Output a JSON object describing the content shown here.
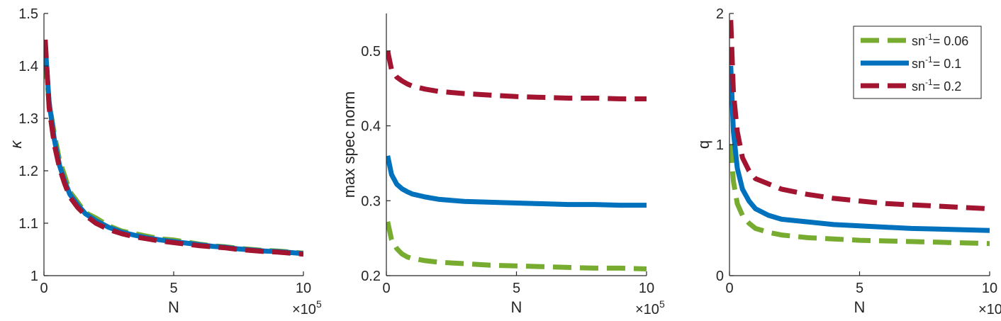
{
  "colors": {
    "green": "#77AC30",
    "blue": "#0072BD",
    "red": "#A2142F",
    "axis": "#262626"
  },
  "legend": {
    "placement": "top-right of third panel",
    "items": [
      {
        "series_index": 0,
        "prefix": "sn",
        "sup": "-1",
        "suffix": "= 0.06"
      },
      {
        "series_index": 1,
        "prefix": "sn",
        "sup": "-1",
        "suffix": "= 0.1"
      },
      {
        "series_index": 2,
        "prefix": "sn",
        "sup": "-1",
        "suffix": "= 0.2"
      }
    ]
  },
  "chart_data": [
    {
      "type": "line",
      "xlabel": "N",
      "x_multiplier": {
        "base": "×10",
        "exp": "5"
      },
      "ylabel": "κ",
      "xlim": [
        0,
        10
      ],
      "ylim": [
        1.0,
        1.5
      ],
      "xticks": [
        0,
        5,
        10
      ],
      "yticks": [
        1,
        1.1,
        1.2,
        1.3,
        1.4,
        1.5
      ],
      "ytick_labels": [
        "1",
        "1.1",
        "1.2",
        "1.3",
        "1.4",
        "1.5"
      ],
      "grid": false,
      "series": [
        {
          "style": "dashed",
          "color": "#77AC30",
          "x": [
            0.05,
            0.2,
            0.4,
            0.6,
            0.8,
            1.0,
            1.3,
            1.6,
            2.0,
            2.5,
            3.0,
            3.5,
            4.0,
            4.5,
            5.0,
            5.5,
            6.0,
            6.5,
            7.0,
            7.5,
            8.0,
            8.5,
            9.0,
            9.5,
            10.0
          ],
          "y": [
            1.41,
            1.33,
            1.27,
            1.22,
            1.19,
            1.16,
            1.14,
            1.12,
            1.11,
            1.095,
            1.085,
            1.08,
            1.075,
            1.07,
            1.068,
            1.064,
            1.06,
            1.057,
            1.055,
            1.052,
            1.05,
            1.048,
            1.047,
            1.045,
            1.043
          ]
        },
        {
          "style": "solid",
          "color": "#0072BD",
          "x": [
            0.05,
            0.2,
            0.4,
            0.6,
            0.8,
            1.0,
            1.3,
            1.6,
            2.0,
            2.5,
            3.0,
            3.5,
            4.0,
            4.5,
            5.0,
            5.5,
            6.0,
            6.5,
            7.0,
            7.5,
            8.0,
            8.5,
            9.0,
            9.5,
            10.0
          ],
          "y": [
            1.44,
            1.33,
            1.26,
            1.21,
            1.18,
            1.155,
            1.135,
            1.118,
            1.105,
            1.092,
            1.083,
            1.077,
            1.072,
            1.068,
            1.065,
            1.062,
            1.059,
            1.056,
            1.054,
            1.051,
            1.049,
            1.047,
            1.046,
            1.044,
            1.042
          ]
        },
        {
          "style": "dashed",
          "color": "#A2142F",
          "x": [
            0.05,
            0.2,
            0.4,
            0.6,
            0.8,
            1.0,
            1.3,
            1.6,
            2.0,
            2.5,
            3.0,
            3.5,
            4.0,
            4.5,
            5.0,
            5.5,
            6.0,
            6.5,
            7.0,
            7.5,
            8.0,
            8.5,
            9.0,
            9.5,
            10.0
          ],
          "y": [
            1.45,
            1.32,
            1.25,
            1.205,
            1.175,
            1.15,
            1.13,
            1.115,
            1.1,
            1.088,
            1.08,
            1.074,
            1.07,
            1.066,
            1.063,
            1.06,
            1.057,
            1.055,
            1.053,
            1.05,
            1.048,
            1.046,
            1.045,
            1.043,
            1.041
          ]
        }
      ]
    },
    {
      "type": "line",
      "xlabel": "N",
      "x_multiplier": {
        "base": "×10",
        "exp": "5"
      },
      "ylabel": "max spec norm",
      "xlim": [
        0,
        10
      ],
      "ylim": [
        0.2,
        0.55
      ],
      "xticks": [
        0,
        5,
        10
      ],
      "yticks": [
        0.2,
        0.3,
        0.4,
        0.5
      ],
      "ytick_labels": [
        "0.2",
        "0.3",
        "0.4",
        "0.5"
      ],
      "grid": false,
      "series": [
        {
          "style": "dashed",
          "color": "#77AC30",
          "x": [
            0.05,
            0.2,
            0.4,
            0.6,
            0.8,
            1.0,
            1.5,
            2.0,
            3.0,
            4.0,
            5.0,
            6.0,
            7.0,
            8.0,
            9.0,
            10.0
          ],
          "y": [
            0.272,
            0.248,
            0.236,
            0.229,
            0.225,
            0.223,
            0.22,
            0.218,
            0.216,
            0.214,
            0.213,
            0.212,
            0.211,
            0.21,
            0.21,
            0.209
          ]
        },
        {
          "style": "solid",
          "color": "#0072BD",
          "x": [
            0.05,
            0.2,
            0.4,
            0.6,
            0.8,
            1.0,
            1.5,
            2.0,
            3.0,
            4.0,
            5.0,
            6.0,
            7.0,
            8.0,
            9.0,
            10.0
          ],
          "y": [
            0.36,
            0.335,
            0.322,
            0.316,
            0.312,
            0.309,
            0.305,
            0.302,
            0.299,
            0.298,
            0.297,
            0.296,
            0.295,
            0.295,
            0.294,
            0.294
          ]
        },
        {
          "style": "dashed",
          "color": "#A2142F",
          "x": [
            0.05,
            0.2,
            0.4,
            0.6,
            0.8,
            1.0,
            1.5,
            2.0,
            3.0,
            4.0,
            5.0,
            6.0,
            7.0,
            8.0,
            9.0,
            10.0
          ],
          "y": [
            0.5,
            0.475,
            0.465,
            0.46,
            0.456,
            0.453,
            0.449,
            0.446,
            0.443,
            0.441,
            0.439,
            0.438,
            0.437,
            0.437,
            0.436,
            0.436
          ]
        }
      ]
    },
    {
      "type": "line",
      "xlabel": "N",
      "x_multiplier": {
        "base": "×10",
        "exp": "5"
      },
      "ylabel": "q",
      "xlim": [
        0,
        10
      ],
      "ylim": [
        0,
        2
      ],
      "xticks": [
        0,
        5,
        10
      ],
      "yticks": [
        0,
        1,
        2
      ],
      "ytick_labels": [
        "0",
        "1",
        "2"
      ],
      "grid": false,
      "series": [
        {
          "style": "dashed",
          "color": "#77AC30",
          "x": [
            0.05,
            0.15,
            0.3,
            0.5,
            0.75,
            1.0,
            1.5,
            2.0,
            3.0,
            4.0,
            5.0,
            6.0,
            7.0,
            8.0,
            9.0,
            10.0
          ],
          "y": [
            1.0,
            0.72,
            0.55,
            0.46,
            0.4,
            0.36,
            0.33,
            0.31,
            0.29,
            0.28,
            0.27,
            0.265,
            0.26,
            0.255,
            0.25,
            0.245
          ]
        },
        {
          "style": "solid",
          "color": "#0072BD",
          "x": [
            0.05,
            0.15,
            0.3,
            0.5,
            0.75,
            1.0,
            1.5,
            2.0,
            3.0,
            4.0,
            5.0,
            6.0,
            7.0,
            8.0,
            9.0,
            10.0
          ],
          "y": [
            1.6,
            1.1,
            0.82,
            0.66,
            0.57,
            0.51,
            0.46,
            0.43,
            0.41,
            0.39,
            0.38,
            0.37,
            0.36,
            0.355,
            0.35,
            0.345
          ]
        },
        {
          "style": "dashed",
          "color": "#A2142F",
          "x": [
            0.05,
            0.15,
            0.3,
            0.5,
            0.75,
            1.0,
            1.5,
            2.0,
            3.0,
            4.0,
            5.0,
            6.0,
            7.0,
            8.0,
            9.0,
            10.0
          ],
          "y": [
            1.95,
            1.4,
            1.1,
            0.9,
            0.8,
            0.74,
            0.7,
            0.66,
            0.62,
            0.59,
            0.57,
            0.55,
            0.54,
            0.53,
            0.52,
            0.51
          ]
        }
      ]
    }
  ]
}
